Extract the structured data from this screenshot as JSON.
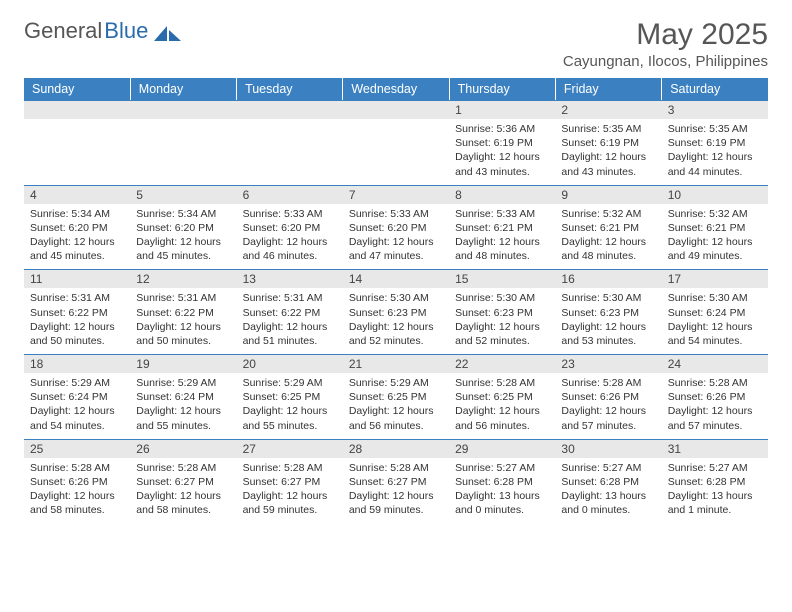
{
  "logo": {
    "word1": "General",
    "word2": "Blue"
  },
  "title": "May 2025",
  "subtitle": "Cayungnan, Ilocos, Philippines",
  "colors": {
    "header_bg": "#3b81c2",
    "divider": "#3b81c2",
    "daynum_bg": "#e8e8e8",
    "page_bg": "#ffffff",
    "text": "#333333",
    "logo_gray": "#565656",
    "logo_blue": "#2a6bab"
  },
  "fonts": {
    "family": "Arial",
    "title_pt": 30,
    "subtitle_pt": 15,
    "header_pt": 12.5,
    "daynum_pt": 12,
    "body_pt": 10.5
  },
  "weekdays": [
    "Sunday",
    "Monday",
    "Tuesday",
    "Wednesday",
    "Thursday",
    "Friday",
    "Saturday"
  ],
  "first_weekday_index": 4,
  "days": [
    {
      "n": 1,
      "sunrise": "5:36 AM",
      "sunset": "6:19 PM",
      "daylight": "12 hours and 43 minutes."
    },
    {
      "n": 2,
      "sunrise": "5:35 AM",
      "sunset": "6:19 PM",
      "daylight": "12 hours and 43 minutes."
    },
    {
      "n": 3,
      "sunrise": "5:35 AM",
      "sunset": "6:19 PM",
      "daylight": "12 hours and 44 minutes."
    },
    {
      "n": 4,
      "sunrise": "5:34 AM",
      "sunset": "6:20 PM",
      "daylight": "12 hours and 45 minutes."
    },
    {
      "n": 5,
      "sunrise": "5:34 AM",
      "sunset": "6:20 PM",
      "daylight": "12 hours and 45 minutes."
    },
    {
      "n": 6,
      "sunrise": "5:33 AM",
      "sunset": "6:20 PM",
      "daylight": "12 hours and 46 minutes."
    },
    {
      "n": 7,
      "sunrise": "5:33 AM",
      "sunset": "6:20 PM",
      "daylight": "12 hours and 47 minutes."
    },
    {
      "n": 8,
      "sunrise": "5:33 AM",
      "sunset": "6:21 PM",
      "daylight": "12 hours and 48 minutes."
    },
    {
      "n": 9,
      "sunrise": "5:32 AM",
      "sunset": "6:21 PM",
      "daylight": "12 hours and 48 minutes."
    },
    {
      "n": 10,
      "sunrise": "5:32 AM",
      "sunset": "6:21 PM",
      "daylight": "12 hours and 49 minutes."
    },
    {
      "n": 11,
      "sunrise": "5:31 AM",
      "sunset": "6:22 PM",
      "daylight": "12 hours and 50 minutes."
    },
    {
      "n": 12,
      "sunrise": "5:31 AM",
      "sunset": "6:22 PM",
      "daylight": "12 hours and 50 minutes."
    },
    {
      "n": 13,
      "sunrise": "5:31 AM",
      "sunset": "6:22 PM",
      "daylight": "12 hours and 51 minutes."
    },
    {
      "n": 14,
      "sunrise": "5:30 AM",
      "sunset": "6:23 PM",
      "daylight": "12 hours and 52 minutes."
    },
    {
      "n": 15,
      "sunrise": "5:30 AM",
      "sunset": "6:23 PM",
      "daylight": "12 hours and 52 minutes."
    },
    {
      "n": 16,
      "sunrise": "5:30 AM",
      "sunset": "6:23 PM",
      "daylight": "12 hours and 53 minutes."
    },
    {
      "n": 17,
      "sunrise": "5:30 AM",
      "sunset": "6:24 PM",
      "daylight": "12 hours and 54 minutes."
    },
    {
      "n": 18,
      "sunrise": "5:29 AM",
      "sunset": "6:24 PM",
      "daylight": "12 hours and 54 minutes."
    },
    {
      "n": 19,
      "sunrise": "5:29 AM",
      "sunset": "6:24 PM",
      "daylight": "12 hours and 55 minutes."
    },
    {
      "n": 20,
      "sunrise": "5:29 AM",
      "sunset": "6:25 PM",
      "daylight": "12 hours and 55 minutes."
    },
    {
      "n": 21,
      "sunrise": "5:29 AM",
      "sunset": "6:25 PM",
      "daylight": "12 hours and 56 minutes."
    },
    {
      "n": 22,
      "sunrise": "5:28 AM",
      "sunset": "6:25 PM",
      "daylight": "12 hours and 56 minutes."
    },
    {
      "n": 23,
      "sunrise": "5:28 AM",
      "sunset": "6:26 PM",
      "daylight": "12 hours and 57 minutes."
    },
    {
      "n": 24,
      "sunrise": "5:28 AM",
      "sunset": "6:26 PM",
      "daylight": "12 hours and 57 minutes."
    },
    {
      "n": 25,
      "sunrise": "5:28 AM",
      "sunset": "6:26 PM",
      "daylight": "12 hours and 58 minutes."
    },
    {
      "n": 26,
      "sunrise": "5:28 AM",
      "sunset": "6:27 PM",
      "daylight": "12 hours and 58 minutes."
    },
    {
      "n": 27,
      "sunrise": "5:28 AM",
      "sunset": "6:27 PM",
      "daylight": "12 hours and 59 minutes."
    },
    {
      "n": 28,
      "sunrise": "5:28 AM",
      "sunset": "6:27 PM",
      "daylight": "12 hours and 59 minutes."
    },
    {
      "n": 29,
      "sunrise": "5:27 AM",
      "sunset": "6:28 PM",
      "daylight": "13 hours and 0 minutes."
    },
    {
      "n": 30,
      "sunrise": "5:27 AM",
      "sunset": "6:28 PM",
      "daylight": "13 hours and 0 minutes."
    },
    {
      "n": 31,
      "sunrise": "5:27 AM",
      "sunset": "6:28 PM",
      "daylight": "13 hours and 1 minute."
    }
  ],
  "labels": {
    "sunrise": "Sunrise: ",
    "sunset": "Sunset: ",
    "daylight": "Daylight: "
  }
}
